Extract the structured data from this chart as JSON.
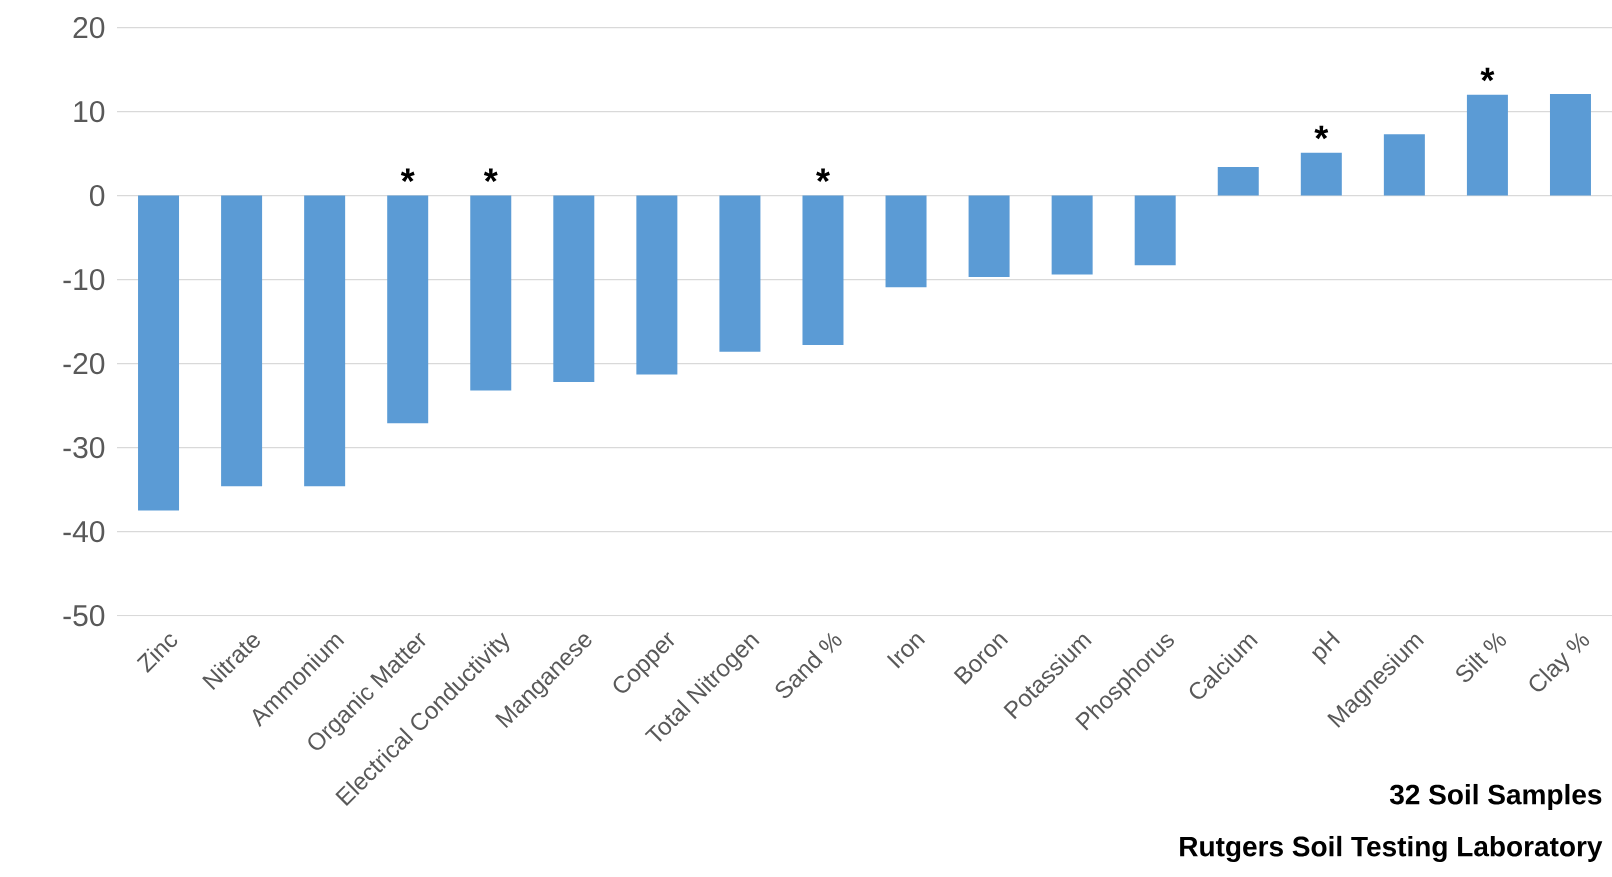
{
  "chart_data": {
    "type": "bar",
    "categories": [
      "Zinc",
      "Nitrate",
      "Ammonium",
      "Organic Matter",
      "Electrical Conductivity",
      "Manganese",
      "Copper",
      "Total Nitrogen",
      "Sand %",
      "Iron",
      "Boron",
      "Potassium",
      "Phosphorus",
      "Calcium",
      "pH",
      "Magnesium",
      "Silt %",
      "Clay %"
    ],
    "values": [
      -37.5,
      -34.6,
      -34.6,
      -27.1,
      -23.2,
      -22.2,
      -21.3,
      -18.6,
      -17.8,
      -10.9,
      -9.7,
      -9.4,
      -8.3,
      3.4,
      5.1,
      7.3,
      12.0,
      12.1
    ],
    "color": "#5b9bd5",
    "ylim": [
      -50,
      20
    ],
    "yticks": [
      -50,
      -40,
      -30,
      -20,
      -10,
      0,
      10,
      20
    ],
    "grid": "y",
    "annotations": [
      {
        "text": "*",
        "x": "Organic Matter",
        "y": 0
      },
      {
        "text": "*",
        "x": "Electrical Conductivity",
        "y": 0
      },
      {
        "text": "*",
        "x": "Sand %",
        "y": 0
      },
      {
        "text": "*",
        "x": "pH",
        "y": 5.1
      },
      {
        "text": "*",
        "x": "Silt %",
        "y": 12.0
      },
      "32 Soil Samples",
      "Rutgers Soil Testing Laboratory"
    ]
  }
}
